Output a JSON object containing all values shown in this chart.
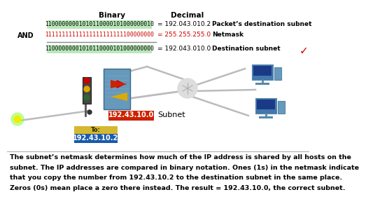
{
  "title_binary": "Binary",
  "title_decimal": "Decimal",
  "row1_binary": "11000000001010110000101000000010",
  "row1_decimal": "= 192.043.010.2",
  "row1_label": "Packet’s destination subnet",
  "row2_prefix": "AND",
  "row2_binary": "11111111111111111111111100000000",
  "row2_decimal": "= 255.255.255.0",
  "row2_label": "Netmask",
  "row3_binary": "11000000001010110000101000000000",
  "row3_decimal": "= 192.043.010.0",
  "row3_label": "Destination subnet",
  "subnet_label": "192.43.10.0",
  "subnet_text": "Subnet",
  "to_label": "To:",
  "to_ip": "192.43.10.2",
  "body_line1": "The subnet’s netmask determines how much of the IP address is shared by all hosts on the",
  "body_line2": "subnet. The IP addresses are compared in binary notation. Ones (1s) in the netmask indicate",
  "body_line3": "that you copy the number from 192.43.10.2 to the destination subnet in the same place.",
  "body_line4": "Zeros (0s) mean place a zero there instead. The result = 192.43.10.0, the correct subnet.",
  "bg_color": "#ffffff",
  "highlight_green": "#b8e8b8",
  "binary_color": "#000000",
  "netmask_binary_color": "#cc0000",
  "netmask_decimal_color": "#cc0000",
  "decimal_color": "#000000",
  "label_color": "#000000",
  "subnet_bg": "#cc2200",
  "subnet_text_color": "#ffffff",
  "to_bg_top": "#d4b830",
  "to_bg_bottom": "#1a5aaa",
  "to_text_color": "#ffffff",
  "divider_color": "#888888",
  "wire_color": "#bbbbbb",
  "hub_color": "#cccccc",
  "router_color": "#6699bb",
  "tl_body_color": "#444444",
  "red_light": "#cc0000",
  "yellow_light": "#ddaa00",
  "green_light_off": "#336633",
  "packet_color": "#eeee00",
  "glow_color": "#88ff44"
}
